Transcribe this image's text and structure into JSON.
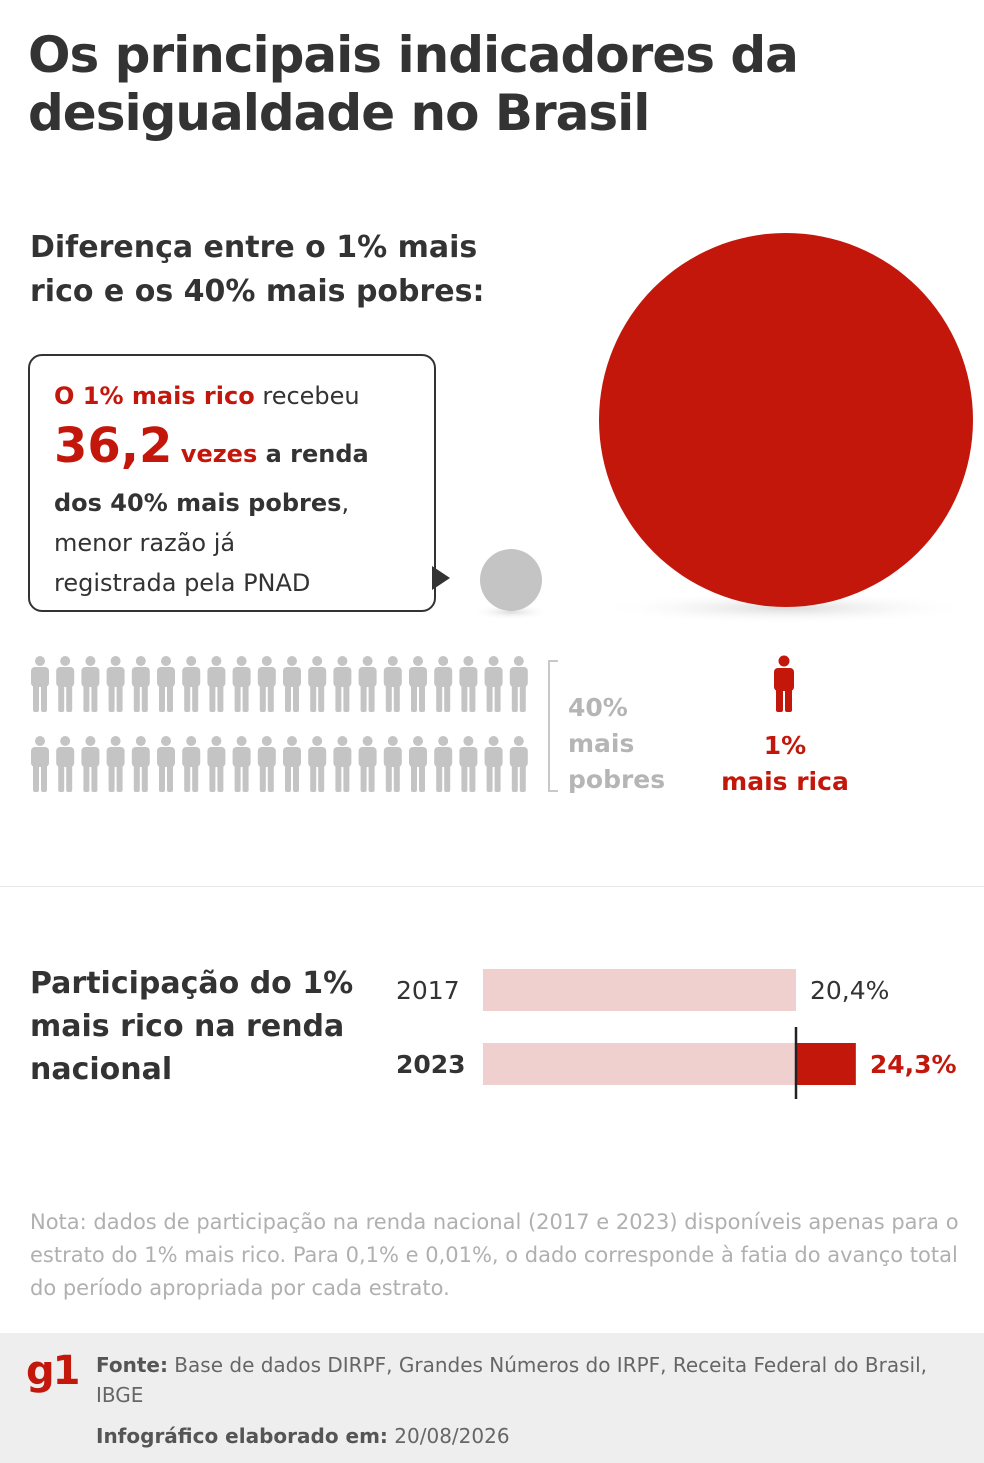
{
  "title": "Os principais indicadores da desigualdade no Brasil",
  "section1": {
    "subtitle": "Diferença entre o 1% mais rico e os 40% mais pobres:",
    "callout": {
      "highlight": "O 1% mais rico",
      "text1": " recebeu",
      "ratio": "36,2",
      "ratio_unit": " vezes",
      "text2": " a renda",
      "text3": "dos 40% mais pobres",
      "text4": ",",
      "text5": "menor razão já",
      "text6": "registrada pela PNAD"
    },
    "poor_label": [
      "40%",
      "mais",
      "pobres"
    ],
    "rich_label": [
      "1%",
      "mais rica"
    ],
    "people_rows": 2,
    "people_per_row": 20
  },
  "chart_data": {
    "type": "bar",
    "title": "Participação do 1% mais rico na renda nacional",
    "categories": [
      "2017",
      "2023"
    ],
    "values": [
      20.4,
      24.3
    ],
    "value_labels": [
      "20,4%",
      "24,3%"
    ],
    "xlim": [
      0,
      30
    ]
  },
  "note": "Nota: dados de participação na renda nacional (2017 e 2023) disponíveis apenas para o estrato do 1% mais rico. Para 0,1% e 0,01%, o dado corresponde à fatia do avanço total do período apropriada por cada estrato.",
  "footer": {
    "logo": "g1",
    "source_label": "Fonte:",
    "source_text": " Base de dados DIRPF, Grandes Números do IRPF, Receita Federal do Brasil, IBGE",
    "made_label": "Infográfico elaborado em:",
    "made_date": " 20/08/2026"
  },
  "colors": {
    "red": "#c4170c",
    "gray_person": "#c4c4c4",
    "bar_light": "#f0cfcf",
    "dark_text": "#333333"
  }
}
